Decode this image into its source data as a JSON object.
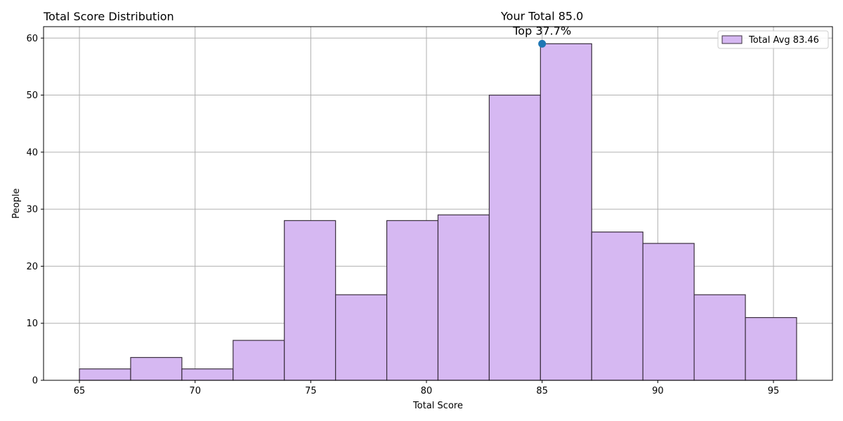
{
  "chart_data": {
    "type": "bar",
    "title": "Total Score Distribution",
    "xlabel": "Total Score",
    "ylabel": "People",
    "xlim": [
      63.45,
      97.55
    ],
    "ylim": [
      0,
      62
    ],
    "xticks": [
      65,
      70,
      75,
      80,
      85,
      90,
      95
    ],
    "yticks": [
      0,
      10,
      20,
      30,
      40,
      50,
      60
    ],
    "grid": true,
    "bin_edges": [
      65.0,
      67.2143,
      69.4286,
      71.6429,
      73.8571,
      76.0714,
      78.2857,
      80.5,
      82.7143,
      84.9286,
      87.1429,
      89.3571,
      91.5714,
      93.7857,
      96.0
    ],
    "series": [
      {
        "name": "Total Avg 83.46",
        "values": [
          2,
          4,
          2,
          7,
          28,
          15,
          28,
          29,
          50,
          59,
          26,
          24,
          15,
          11
        ],
        "color": "#d6b8f2",
        "edge_color": "#3b2f3f"
      }
    ],
    "marker": {
      "x": 85.0,
      "y": 59,
      "color": "#1f77b4",
      "label_line1": "Your Total 85.0",
      "label_line2": "Top 37.7%"
    },
    "legend_position": "top-right"
  }
}
